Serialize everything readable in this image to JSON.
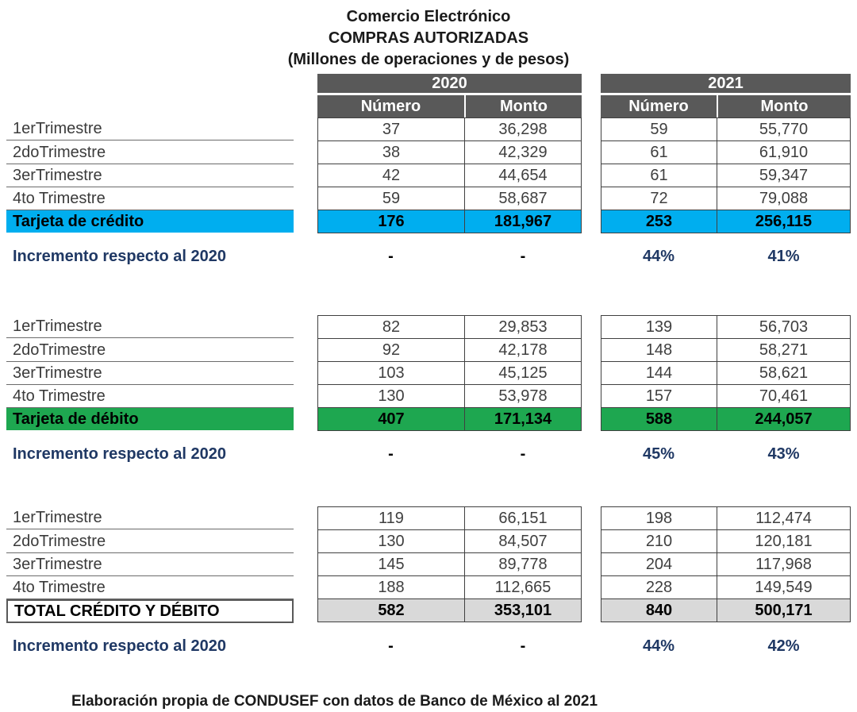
{
  "title": {
    "line1": "Comercio Electrónico",
    "line2": "COMPRAS AUTORIZADAS",
    "line3": "(Millones de operaciones y de pesos)"
  },
  "columns": {
    "year_2020": "2020",
    "year_2021": "2021",
    "numero": "Número",
    "monto": "Monto"
  },
  "colors": {
    "header_bg": "#595959",
    "credit_highlight": "#00AEEF",
    "debit_highlight": "#1EA750",
    "total_highlight": "#D9D9D9",
    "navy_text": "#1F3864"
  },
  "sections": [
    {
      "rows": [
        {
          "label": "1erTrimestre",
          "values": [
            "37",
            "36,298",
            "59",
            "55,770"
          ]
        },
        {
          "label": "2doTrimestre",
          "values": [
            "38",
            "42,329",
            "61",
            "61,910"
          ]
        },
        {
          "label": "3erTrimestre",
          "values": [
            "42",
            "44,654",
            "61",
            "59,347"
          ]
        },
        {
          "label": "4to Trimestre",
          "values": [
            "59",
            "58,687",
            "72",
            "79,088"
          ]
        }
      ],
      "summary": {
        "label": "Tarjeta de crédito",
        "values": [
          "176",
          "181,967",
          "253",
          "256,115"
        ],
        "style": "credit"
      },
      "increment": {
        "label": "Incremento  respecto al 2020",
        "values": [
          "-",
          "-",
          "44%",
          "41%"
        ]
      }
    },
    {
      "rows": [
        {
          "label": "1erTrimestre",
          "values": [
            "82",
            "29,853",
            "139",
            "56,703"
          ]
        },
        {
          "label": "2doTrimestre",
          "values": [
            "92",
            "42,178",
            "148",
            "58,271"
          ]
        },
        {
          "label": "3erTrimestre",
          "values": [
            "103",
            "45,125",
            "144",
            "58,621"
          ]
        },
        {
          "label": "4to Trimestre",
          "values": [
            "130",
            "53,978",
            "157",
            "70,461"
          ]
        }
      ],
      "summary": {
        "label": "Tarjeta de débito",
        "values": [
          "407",
          "171,134",
          "588",
          "244,057"
        ],
        "style": "debit"
      },
      "increment": {
        "label": "Incremento  respecto al 2020",
        "values": [
          "-",
          "-",
          "45%",
          "43%"
        ]
      }
    },
    {
      "rows": [
        {
          "label": "1erTrimestre",
          "values": [
            "119",
            "66,151",
            "198",
            "112,474"
          ]
        },
        {
          "label": "2doTrimestre",
          "values": [
            "130",
            "84,507",
            "210",
            "120,181"
          ]
        },
        {
          "label": "3erTrimestre",
          "values": [
            "145",
            "89,778",
            "204",
            "117,968"
          ]
        },
        {
          "label": "4to Trimestre",
          "values": [
            "188",
            "112,665",
            "228",
            "149,549"
          ]
        }
      ],
      "summary": {
        "label": "TOTAL CRÉDITO Y DÉBITO",
        "values": [
          "582",
          "353,101",
          "840",
          "500,171"
        ],
        "style": "total"
      },
      "increment": {
        "label": "Incremento  respecto al 2020",
        "values": [
          "-",
          "-",
          "44%",
          "42%"
        ]
      }
    }
  ],
  "footer": "Elaboración propia de CONDUSEF con datos de Banco de México al 2021",
  "chart_data": {
    "type": "table",
    "title": "Comercio Electrónico COMPRAS AUTORIZADAS (Millones de operaciones y de pesos)",
    "column_groups": [
      "2020",
      "2021"
    ],
    "columns": [
      "",
      "2020 Número",
      "2020 Monto",
      "2021 Número",
      "2021 Monto"
    ],
    "rows": [
      [
        "1erTrimestre",
        37,
        36298,
        59,
        55770
      ],
      [
        "2doTrimestre",
        38,
        42329,
        61,
        61910
      ],
      [
        "3erTrimestre",
        42,
        44654,
        61,
        59347
      ],
      [
        "4to Trimestre",
        59,
        58687,
        72,
        79088
      ],
      [
        "Tarjeta de crédito",
        176,
        181967,
        253,
        256115
      ],
      [
        "Incremento respecto al 2020 (crédito)",
        "-",
        "-",
        "44%",
        "41%"
      ],
      [
        "1erTrimestre",
        82,
        29853,
        139,
        56703
      ],
      [
        "2doTrimestre",
        92,
        42178,
        148,
        58271
      ],
      [
        "3erTrimestre",
        103,
        45125,
        144,
        58621
      ],
      [
        "4to Trimestre",
        130,
        53978,
        157,
        70461
      ],
      [
        "Tarjeta de débito",
        407,
        171134,
        588,
        244057
      ],
      [
        "Incremento respecto al 2020 (débito)",
        "-",
        "-",
        "45%",
        "43%"
      ],
      [
        "1erTrimestre",
        119,
        66151,
        198,
        112474
      ],
      [
        "2doTrimestre",
        130,
        84507,
        210,
        120181
      ],
      [
        "3erTrimestre",
        145,
        89778,
        204,
        117968
      ],
      [
        "4to Trimestre",
        188,
        112665,
        228,
        149549
      ],
      [
        "TOTAL CRÉDITO Y DÉBITO",
        582,
        353101,
        840,
        500171
      ],
      [
        "Incremento respecto al 2020 (total)",
        "-",
        "-",
        "44%",
        "42%"
      ]
    ],
    "source_note": "Elaboración propia de CONDUSEF con datos de Banco de México al 2021"
  }
}
